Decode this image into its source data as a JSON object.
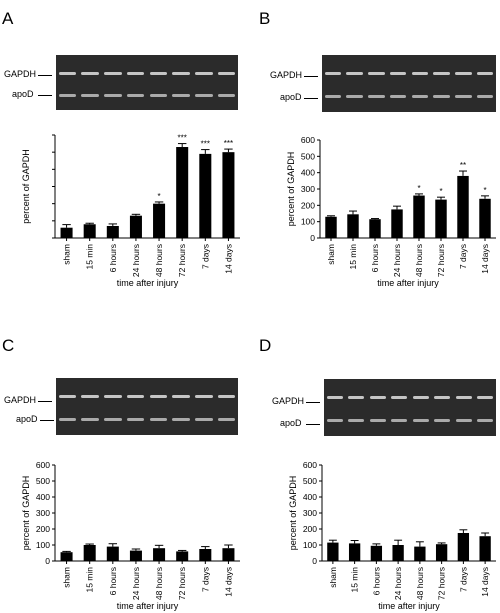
{
  "bands": {
    "top": "GAPDH",
    "bottom": "apoD"
  },
  "colors": {
    "bar": "#000000",
    "gel_bg": "#2b2b2b",
    "band": "#d6d6d6"
  },
  "chart_data": [
    {
      "panel": "A",
      "type": "bar",
      "categories": [
        "sham",
        "15 min",
        "6 hours",
        "24 hours",
        "48 hours",
        "72 hours",
        "7 days",
        "14 days"
      ],
      "values": [
        60,
        80,
        70,
        130,
        200,
        530,
        490,
        500
      ],
      "errors": [
        18,
        6,
        12,
        8,
        10,
        20,
        25,
        18
      ],
      "significance": [
        "",
        "",
        "",
        "",
        "*",
        "***",
        "***",
        "***"
      ],
      "xlabel": "time after injury",
      "ylabel": "percent of GAPDH",
      "yticks": [],
      "ylim": [
        0,
        600
      ]
    },
    {
      "panel": "B",
      "type": "bar",
      "categories": [
        "sham",
        "15 min",
        "6 hours",
        "24 hours",
        "48 hours",
        "72 hours",
        "7 days",
        "14 days"
      ],
      "values": [
        130,
        145,
        115,
        175,
        260,
        235,
        380,
        240
      ],
      "errors": [
        6,
        20,
        4,
        20,
        10,
        15,
        30,
        18
      ],
      "significance": [
        "",
        "",
        "",
        "",
        "*",
        "*",
        "**",
        "*"
      ],
      "xlabel": "time after injury",
      "ylabel": "percent of GAPDH",
      "yticks": [
        "0",
        "100",
        "200",
        "300",
        "400",
        "500",
        "600"
      ],
      "ylim": [
        0,
        600
      ]
    },
    {
      "panel": "C",
      "type": "bar",
      "categories": [
        "sham",
        "15 min",
        "6 hours",
        "24 hours",
        "48 hours",
        "72 hours",
        "7 days",
        "14 days"
      ],
      "values": [
        55,
        100,
        90,
        65,
        80,
        60,
        75,
        80
      ],
      "errors": [
        5,
        6,
        18,
        10,
        18,
        6,
        15,
        20
      ],
      "significance": [
        "",
        "",
        "",
        "",
        "",
        "",
        "",
        ""
      ],
      "xlabel": "time after injury",
      "ylabel": "percent of GAPDH",
      "yticks": [
        "0",
        "100",
        "200",
        "300",
        "400",
        "500",
        "600"
      ],
      "ylim": [
        0,
        600
      ]
    },
    {
      "panel": "D",
      "type": "bar",
      "categories": [
        "sham",
        "15 min",
        "6 hours",
        "24 hours",
        "48 hours",
        "72 hours",
        "7 days",
        "14 days"
      ],
      "values": [
        115,
        110,
        95,
        100,
        90,
        105,
        175,
        155
      ],
      "errors": [
        15,
        18,
        12,
        30,
        30,
        8,
        20,
        20
      ],
      "significance": [
        "",
        "",
        "",
        "",
        "",
        "",
        "",
        ""
      ],
      "xlabel": "time after injury",
      "ylabel": "percent of GAPDH",
      "yticks": [
        "0",
        "100",
        "200",
        "300",
        "400",
        "500",
        "600"
      ],
      "ylim": [
        0,
        600
      ]
    }
  ]
}
